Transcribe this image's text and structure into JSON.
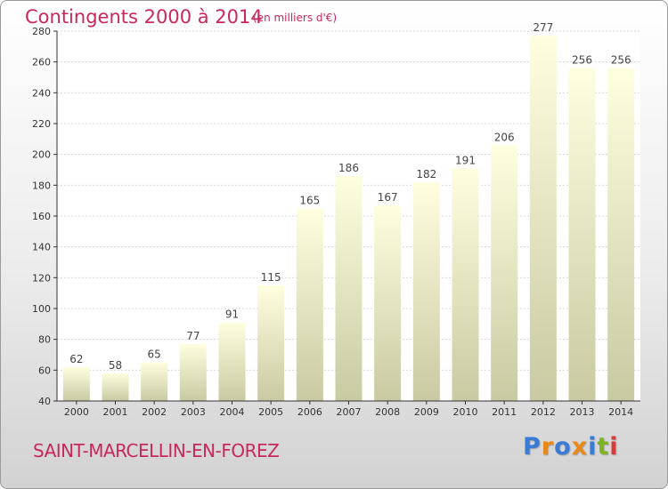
{
  "header": {
    "title": "Contingents 2000 à 2014",
    "unit": "(en milliers d'€)"
  },
  "footer": {
    "commune": "SAINT-MARCELLIN-EN-FOREZ",
    "logo_text": "Proxiti"
  },
  "colors": {
    "title": "#c8285f",
    "bar_top": "#ffffe0",
    "bar_bottom": "#c9c9a2",
    "logo": [
      "#3a7bd5",
      "#e8891a",
      "#3a7bd5",
      "#e8891a",
      "#3a7bd5",
      "#7ab51d",
      "#d63a3a"
    ]
  },
  "chart_data": {
    "type": "bar",
    "title": "Contingents 2000 à 2014",
    "subtitle": "(en milliers d'€)",
    "categories": [
      "2000",
      "2001",
      "2002",
      "2003",
      "2004",
      "2005",
      "2006",
      "2007",
      "2008",
      "2009",
      "2010",
      "2011",
      "2012",
      "2013",
      "2014"
    ],
    "values": [
      62,
      58,
      65,
      77,
      91,
      115,
      165,
      186,
      167,
      182,
      191,
      206,
      277,
      256,
      256
    ],
    "ylim": [
      40,
      280
    ],
    "yticks": [
      40,
      60,
      80,
      100,
      120,
      140,
      160,
      180,
      200,
      220,
      240,
      260,
      280
    ],
    "grid": true,
    "data_labels": true
  }
}
